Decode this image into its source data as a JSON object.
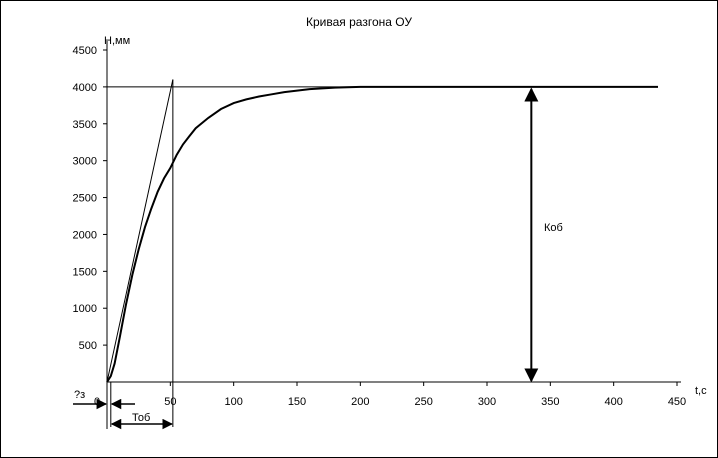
{
  "chart_data": {
    "type": "line",
    "title": "Кривая разгона ОУ",
    "xlabel": "t,c",
    "ylabel": "Н,мм",
    "xlim": [
      0,
      450
    ],
    "ylim": [
      0,
      4500
    ],
    "x_ticks": [
      "0",
      "50",
      "100",
      "150",
      "200",
      "250",
      "300",
      "350",
      "400",
      "450"
    ],
    "y_ticks": [
      "500",
      "1000",
      "1500",
      "2000",
      "2500",
      "3000",
      "3500",
      "4000",
      "4500"
    ],
    "grid": false,
    "series": [
      {
        "x": [
          0,
          3,
          6,
          10,
          15,
          20,
          25,
          30,
          35,
          40,
          45,
          50,
          55,
          60,
          65,
          70,
          80,
          90,
          100,
          110,
          120,
          130,
          140,
          150,
          160,
          170,
          180,
          200,
          250,
          300,
          350,
          400,
          435
        ],
        "values": [
          0,
          80,
          250,
          600,
          1050,
          1450,
          1800,
          2100,
          2350,
          2580,
          2760,
          2900,
          3080,
          3220,
          3330,
          3440,
          3580,
          3700,
          3780,
          3830,
          3870,
          3900,
          3930,
          3950,
          3970,
          3980,
          3990,
          4000,
          4000,
          4000,
          4000,
          4000,
          4000
        ]
      }
    ],
    "steady_state_line": 4000,
    "tangent": {
      "from": [
        0,
        0
      ],
      "to": [
        52,
        4100
      ]
    },
    "annotations": {
      "k": "Коб",
      "t": "Тоб",
      "tau": "?з"
    }
  }
}
